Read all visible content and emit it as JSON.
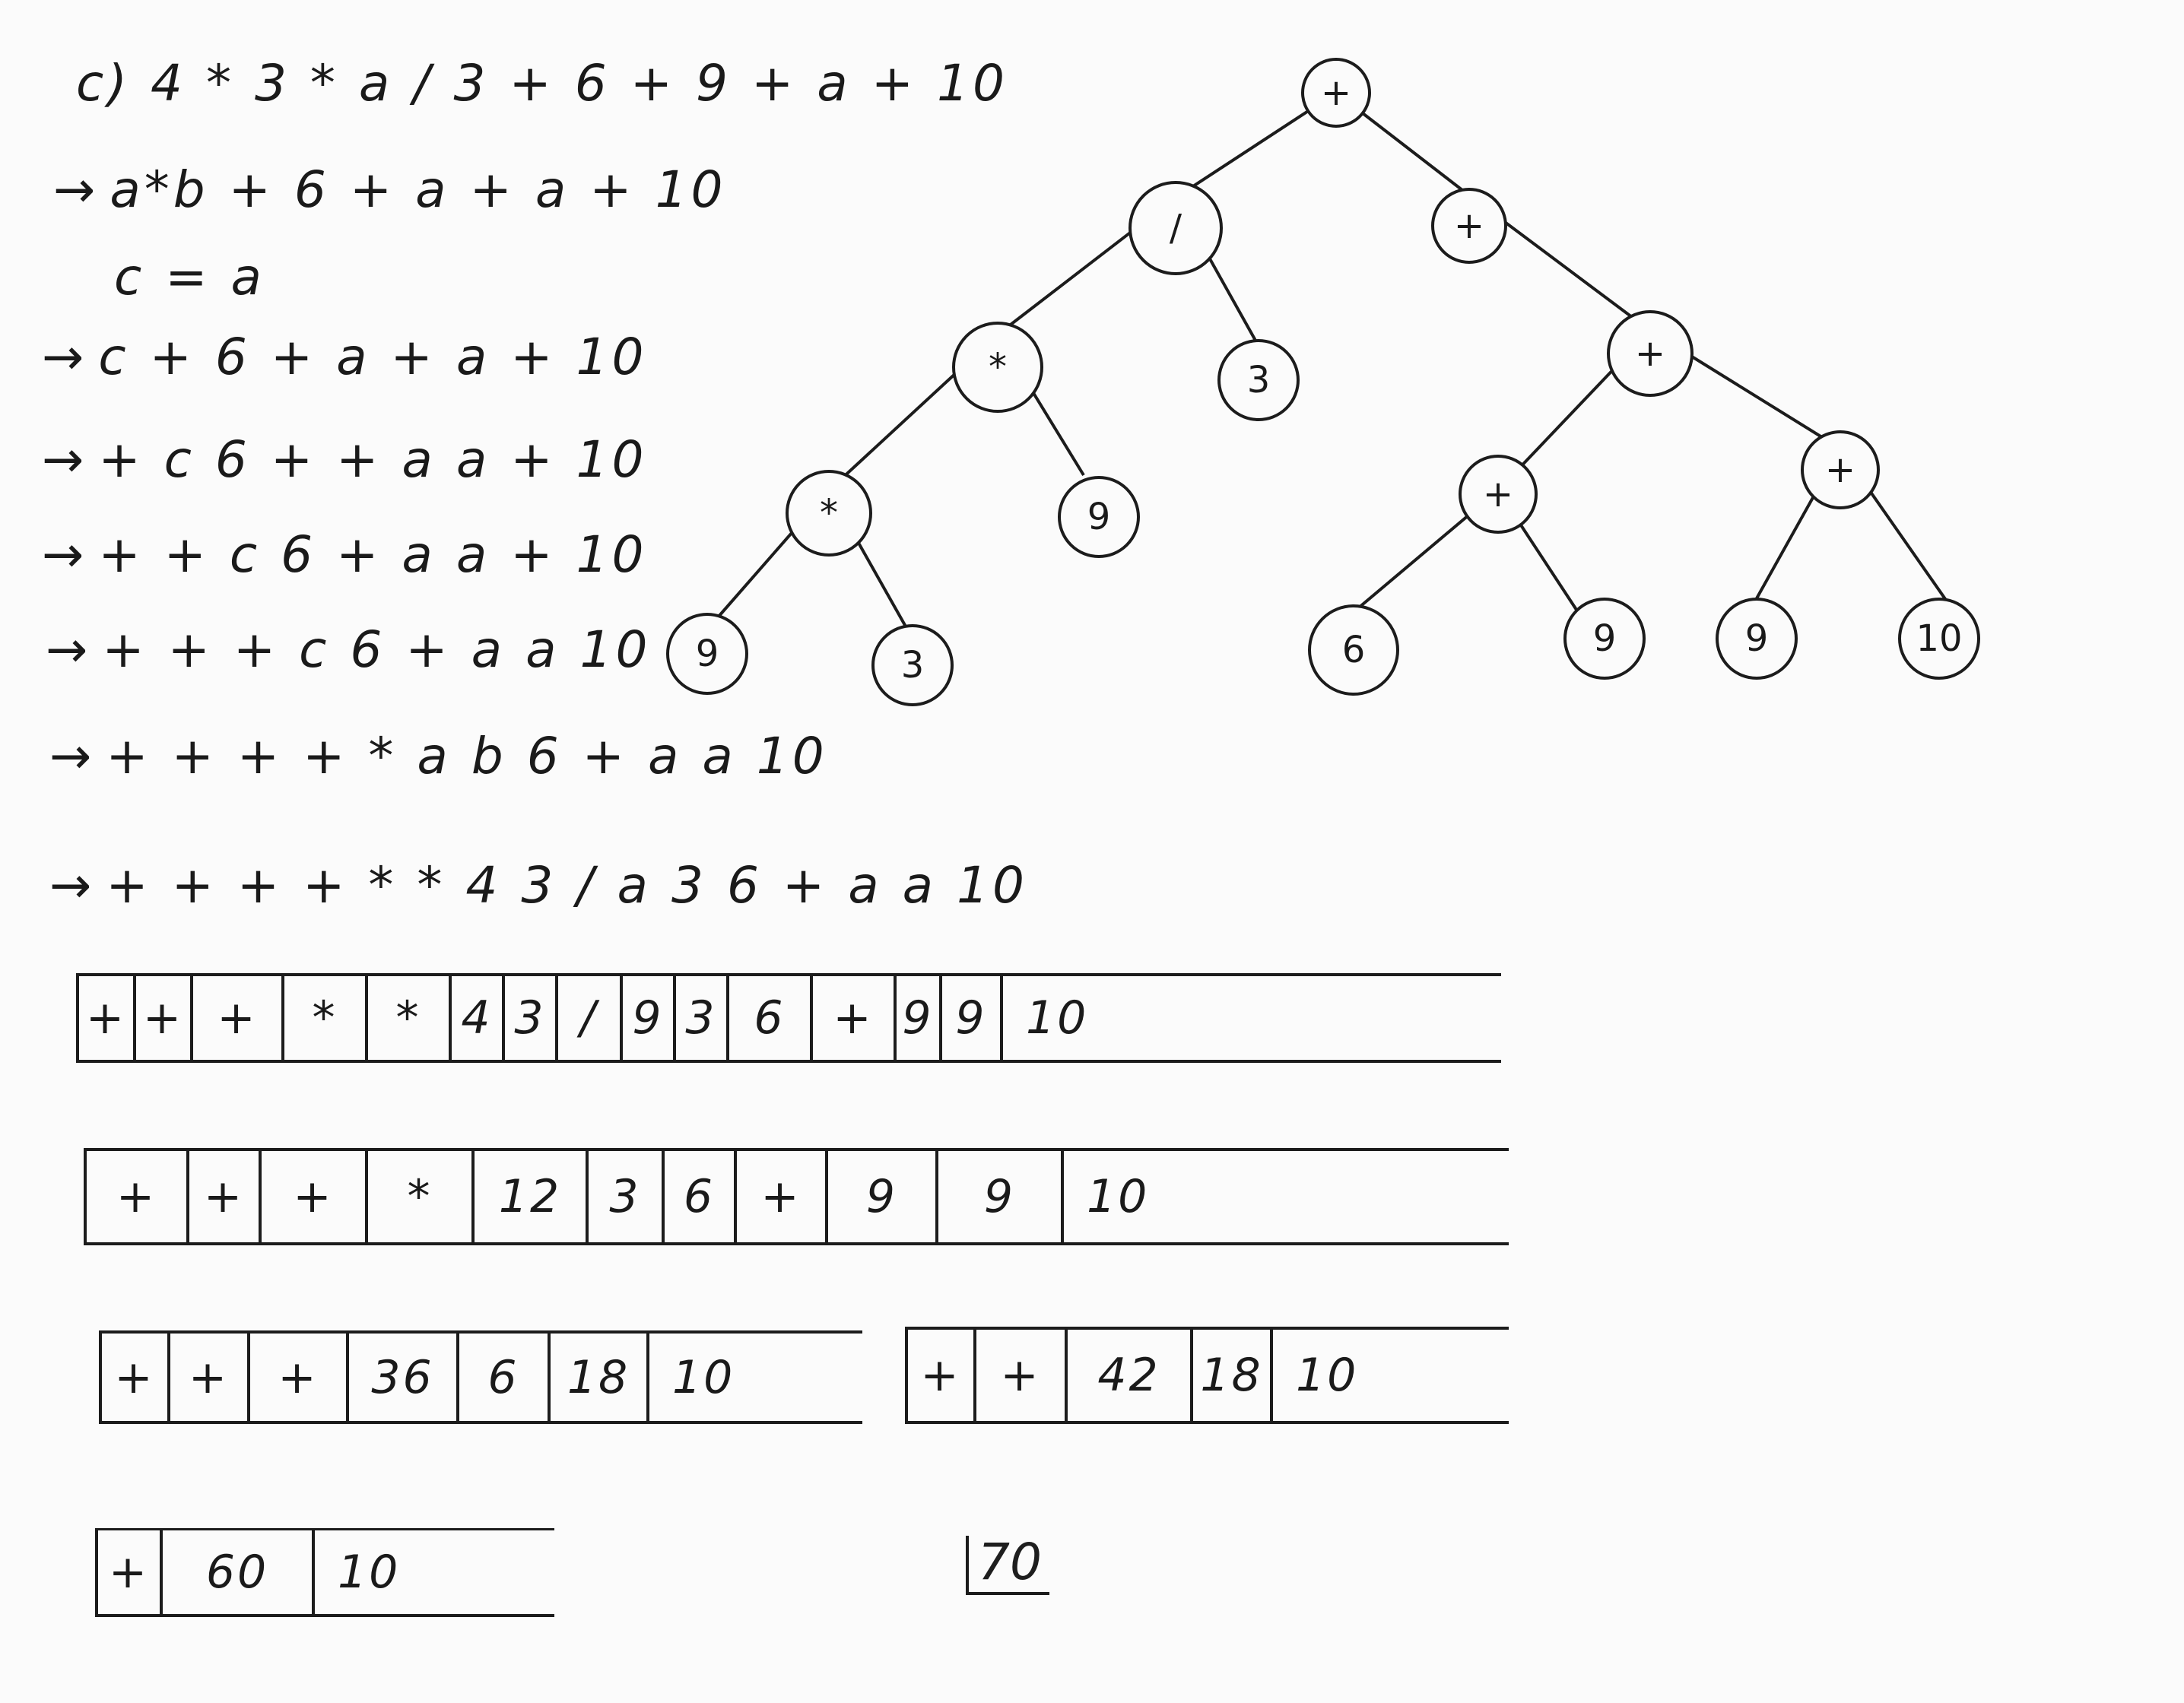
{
  "derivation": {
    "expression": "c) 4 * 3 * a / 3 + 6 + 9 + a + 10",
    "arrow": "→",
    "steps": [
      "a*b + 6 + a + a + 10",
      "c = a",
      "c + 6 + a + a + 10",
      "+ c 6 + + a a + 10",
      "+ + c 6 + a a + 10",
      "+ + + c 6 + a a 10",
      "+ + + + * a b 6 + a a 10",
      "+ + + + * * 4 3 / a 3 6 + a a 10"
    ]
  },
  "tree": {
    "nodes": [
      "+",
      "/",
      "+",
      "*",
      "3",
      "+",
      "*",
      "9",
      "+",
      "+",
      "9",
      "3",
      "6",
      "9",
      "9",
      "10"
    ]
  },
  "stack_rows": [
    [
      "+",
      "+",
      "+",
      "*",
      "*",
      "4",
      "3",
      "/",
      "9",
      "3",
      "6",
      "+",
      "9",
      "9",
      "10"
    ],
    [
      "+",
      "+",
      "+",
      "*",
      "12",
      "3",
      "6",
      "+",
      "9",
      "9",
      "10"
    ],
    [
      "+",
      "+",
      "+",
      "36",
      "6",
      "18",
      "10"
    ],
    [
      "+",
      "+",
      "42",
      "18",
      "10"
    ],
    [
      "+",
      "60",
      "10"
    ]
  ],
  "final_result": "70"
}
